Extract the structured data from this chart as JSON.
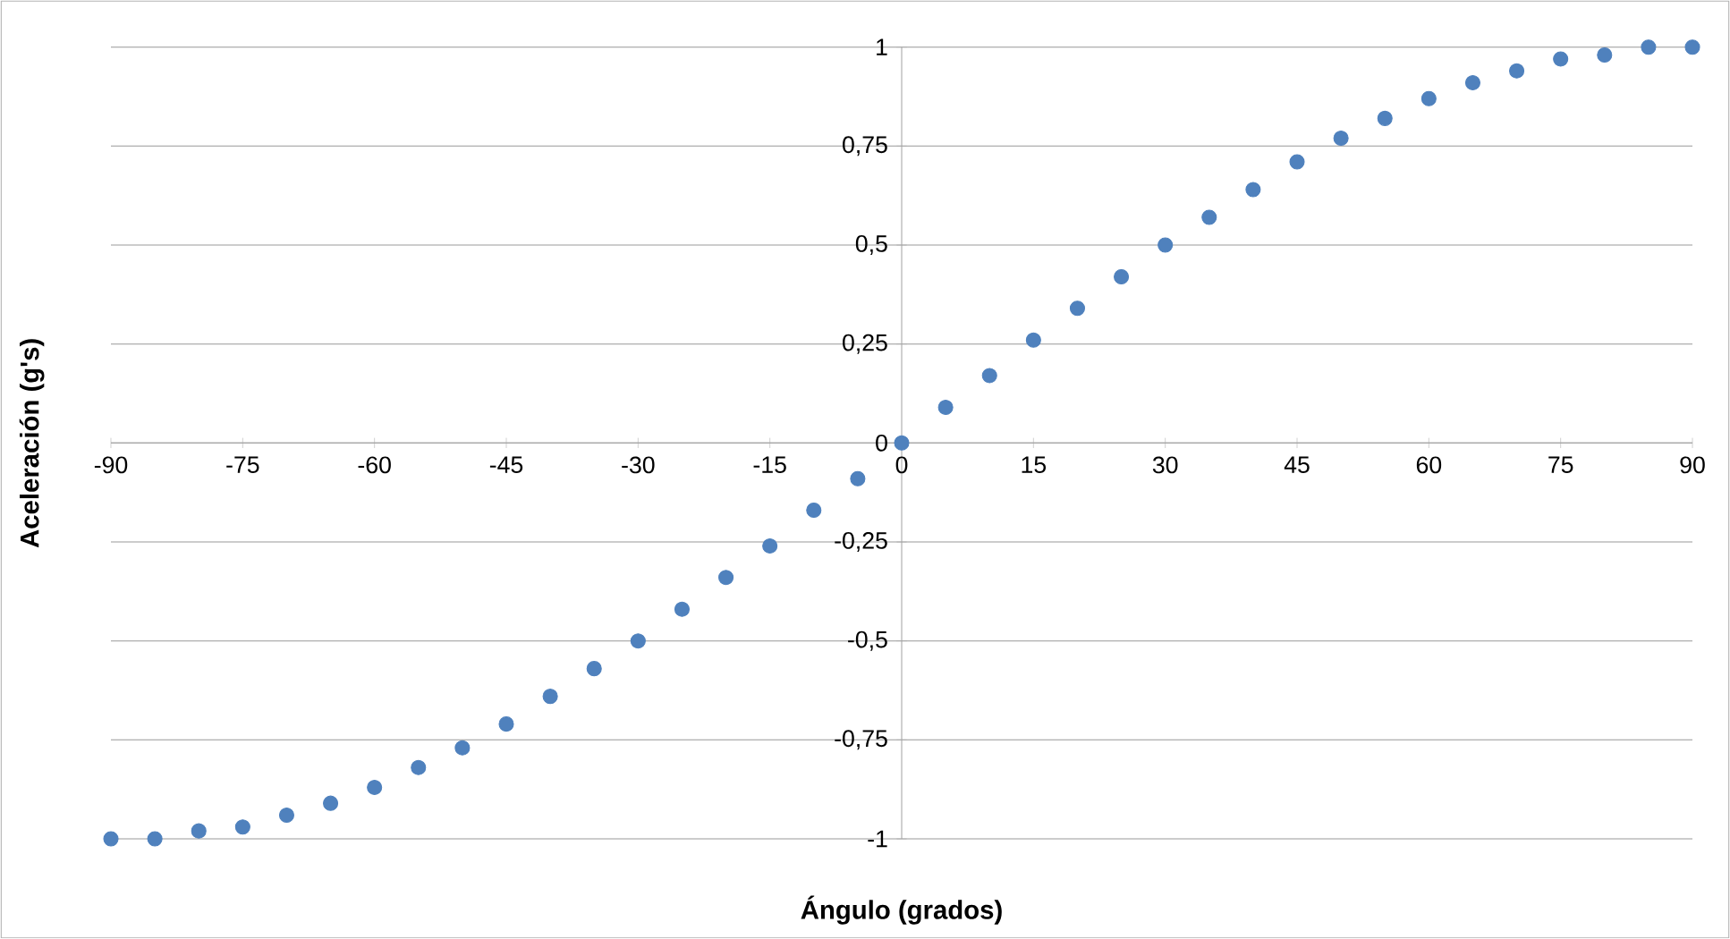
{
  "chart_data": {
    "type": "scatter",
    "xlabel": "Ángulo (grados)",
    "ylabel": "Aceleración (g's)",
    "x": [
      -90,
      -85,
      -80,
      -75,
      -70,
      -65,
      -60,
      -55,
      -50,
      -45,
      -40,
      -35,
      -30,
      -25,
      -20,
      -15,
      -10,
      -5,
      0,
      5,
      10,
      15,
      20,
      25,
      30,
      35,
      40,
      45,
      50,
      55,
      60,
      65,
      70,
      75,
      80,
      85,
      90
    ],
    "series": [
      {
        "color": "#4f81bd",
        "values": [
          -1.0,
          -1.0,
          -0.98,
          -0.97,
          -0.94,
          -0.91,
          -0.87,
          -0.82,
          -0.77,
          -0.71,
          -0.64,
          -0.57,
          -0.5,
          -0.42,
          -0.34,
          -0.26,
          -0.17,
          -0.09,
          0,
          0.09,
          0.17,
          0.26,
          0.34,
          0.42,
          0.5,
          0.57,
          0.64,
          0.71,
          0.77,
          0.82,
          0.87,
          0.91,
          0.94,
          0.97,
          0.98,
          1.0,
          1.0
        ]
      }
    ],
    "xlim": [
      -90,
      90
    ],
    "ylim": [
      -1,
      1
    ],
    "xticks": [
      -90,
      -75,
      -60,
      -45,
      -30,
      -15,
      0,
      15,
      30,
      45,
      60,
      75,
      90
    ],
    "yticks": [
      {
        "value": -1,
        "label": "-1"
      },
      {
        "value": -0.75,
        "label": "-0,75"
      },
      {
        "value": -0.5,
        "label": "-0,5"
      },
      {
        "value": -0.25,
        "label": "-0,25"
      },
      {
        "value": 0,
        "label": "0"
      },
      {
        "value": 0.25,
        "label": "0,25"
      },
      {
        "value": 0.5,
        "label": "0,5"
      },
      {
        "value": 0.75,
        "label": "0,75"
      },
      {
        "value": 1,
        "label": "1"
      }
    ],
    "grid": "y",
    "marker": "circle"
  }
}
